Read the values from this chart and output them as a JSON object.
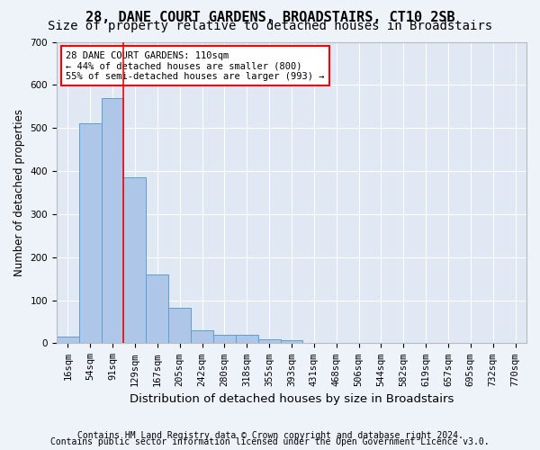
{
  "title": "28, DANE COURT GARDENS, BROADSTAIRS, CT10 2SB",
  "subtitle": "Size of property relative to detached houses in Broadstairs",
  "xlabel": "Distribution of detached houses by size in Broadstairs",
  "ylabel": "Number of detached properties",
  "bar_labels": [
    "16sqm",
    "54sqm",
    "91sqm",
    "129sqm",
    "167sqm",
    "205sqm",
    "242sqm",
    "280sqm",
    "318sqm",
    "355sqm",
    "393sqm",
    "431sqm",
    "468sqm",
    "506sqm",
    "544sqm",
    "582sqm",
    "619sqm",
    "657sqm",
    "695sqm",
    "732sqm",
    "770sqm"
  ],
  "bar_values": [
    15,
    510,
    570,
    385,
    160,
    82,
    30,
    20,
    20,
    10,
    8,
    0,
    0,
    0,
    0,
    0,
    0,
    0,
    0,
    0,
    0
  ],
  "bar_color": "#aec6e8",
  "bar_edge_color": "#5a9fd4",
  "fig_facecolor": "#eef2f9",
  "ax_facecolor": "#e0e8f4",
  "grid_color": "#ffffff",
  "annotation_box_text": "28 DANE COURT GARDENS: 110sqm\n← 44% of detached houses are smaller (800)\n55% of semi-detached houses are larger (993) →",
  "red_line_x": 2.5,
  "ylim": [
    0,
    700
  ],
  "yticks": [
    0,
    100,
    200,
    300,
    400,
    500,
    600,
    700
  ],
  "footer_line1": "Contains HM Land Registry data © Crown copyright and database right 2024.",
  "footer_line2": "Contains public sector information licensed under the Open Government Licence v3.0.",
  "title_fontsize": 11,
  "subtitle_fontsize": 10,
  "xlabel_fontsize": 9.5,
  "ylabel_fontsize": 8.5,
  "tick_fontsize": 7.5,
  "annotation_fontsize": 7.5,
  "footer_fontsize": 7
}
